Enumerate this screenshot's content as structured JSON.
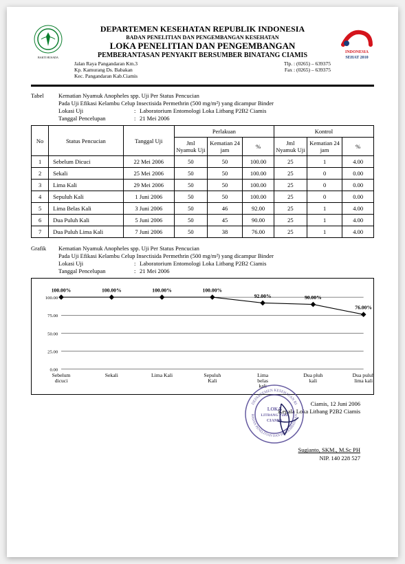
{
  "header": {
    "line1": "DEPARTEMEN KESEHATAN REPUBLIK INDONESIA",
    "line2": "BADAN PENELITIAN DAN PENGEMBANGAN KESEHATAN",
    "line3": "LOKA PENELITIAN DAN PENGEMBANGAN",
    "line4": "PEMBERANTASAN PENYAKIT BERSUMBER BINATANG CIAMIS",
    "addr1": "Jalan Raya Pangandaran Km.3",
    "addr2": "Kp. Kamurang Ds. Babakan",
    "addr3": "Kec. Pangandaran Kab.Ciamis",
    "tlp": "Tlp. : (0265) – 639375",
    "fax": "Fax : (0265) – 639375",
    "logo_right_top": "INDONESIA",
    "logo_right_bottom": "SEHAT 2010"
  },
  "table_caption": {
    "label": "Tabel",
    "title1": "Kematian Nyamuk Anopheles spp. Uji Per Status Pencucian",
    "title2": "Pada Uji Efikasi Kelambu Celup Insectisida Permethrin (500 mg/m²) yang dicampur Binder",
    "loc_k": "Lokasi Uji",
    "loc_v": "Laboratorium Entomologi Loka Litbang P2B2 Ciamis",
    "date_k": "Tanggal Pencelupan",
    "date_v": "21 Mei 2006"
  },
  "table": {
    "headers": {
      "no": "No",
      "status": "Status Pencucian",
      "tgl": "Tanggal Uji",
      "perlakuan": "Perlakuan",
      "kontrol": "Kontrol",
      "jml": "Jml Nyamuk Uji",
      "kematian": "Kematian 24 jam",
      "pct": "%"
    },
    "rows": [
      {
        "no": "1",
        "status": "Sebelum Dicuci",
        "tgl": "22 Mei 2006",
        "p_jml": "50",
        "p_kem": "50",
        "p_pct": "100.00",
        "k_jml": "25",
        "k_kem": "1",
        "k_pct": "4.00"
      },
      {
        "no": "2",
        "status": "Sekali",
        "tgl": "25 Mei 2006",
        "p_jml": "50",
        "p_kem": "50",
        "p_pct": "100.00",
        "k_jml": "25",
        "k_kem": "0",
        "k_pct": "0.00"
      },
      {
        "no": "3",
        "status": "Lima Kali",
        "tgl": "29 Mei 2006",
        "p_jml": "50",
        "p_kem": "50",
        "p_pct": "100.00",
        "k_jml": "25",
        "k_kem": "0",
        "k_pct": "0.00"
      },
      {
        "no": "4",
        "status": "Sepuluh Kali",
        "tgl": "1 Juni 2006",
        "p_jml": "50",
        "p_kem": "50",
        "p_pct": "100.00",
        "k_jml": "25",
        "k_kem": "0",
        "k_pct": "0.00"
      },
      {
        "no": "5",
        "status": "Lima Belas Kali",
        "tgl": "3 Juni 2006",
        "p_jml": "50",
        "p_kem": "46",
        "p_pct": "92.00",
        "k_jml": "25",
        "k_kem": "1",
        "k_pct": "4.00"
      },
      {
        "no": "6",
        "status": "Dua Puluh Kali",
        "tgl": "5 Juni 2006",
        "p_jml": "50",
        "p_kem": "45",
        "p_pct": "90.00",
        "k_jml": "25",
        "k_kem": "1",
        "k_pct": "4.00"
      },
      {
        "no": "7",
        "status": "Dua Puluh Lima Kali",
        "tgl": "7 Juni 2006",
        "p_jml": "50",
        "p_kem": "38",
        "p_pct": "76.00",
        "k_jml": "25",
        "k_kem": "1",
        "k_pct": "4.00"
      }
    ]
  },
  "chart_caption": {
    "label": "Grafik",
    "title1": "Kematian Nyamuk Anopheles spp. Uji Per Status Pencucian",
    "title2": "Pada Uji Efikasi Kelambu Celup Insectisida Permethrin (500 mg/m²) yang dicampur Binder",
    "loc_k": "Lokasi Uji",
    "loc_v": "Laboratorium Entomologi Loka Litbang P2B2 Ciamis",
    "date_k": "Tanggal Pencelupan",
    "date_v": "21 Mei 2006"
  },
  "chart": {
    "type": "line",
    "y_ticks": [
      "0.00",
      "25.00",
      "50.00",
      "75.00",
      "100.00"
    ],
    "y_values": [
      0,
      25,
      50,
      75,
      100
    ],
    "ylim": [
      0,
      105
    ],
    "categories": [
      "Sebelum dicuci",
      "Sekali",
      "Lima Kali",
      "Sepuluh Kali",
      "Lima belas kali",
      "Dua pluh kali",
      "Dua puluh lima kali"
    ],
    "values": [
      100,
      100,
      100,
      100,
      92,
      90,
      76
    ],
    "point_labels": [
      "100.00%",
      "100.00%",
      "100.00%",
      "100.00%",
      "92.00%",
      "90.00%",
      "76.00%"
    ],
    "line_color": "#000000",
    "marker_color": "#000000",
    "marker_shape": "diamond",
    "marker_size": 4,
    "line_width": 1.2,
    "grid_color": "#000000",
    "background_color": "#ffffff",
    "label_fontsize": 7
  },
  "footer": {
    "place_date": "Ciamis, 12 Juni 2006",
    "title": "Kepala Loka Litbang P2B2 Ciamis",
    "name": "Sugianto, SKM., M.Sc PH",
    "nip": "NIP. 140 228 527",
    "stamp_line1": "LOKA",
    "stamp_line2": "LITBANG P2B2",
    "stamp_line3": "CIAMIS",
    "stamp_color": "#4a3d8f"
  }
}
